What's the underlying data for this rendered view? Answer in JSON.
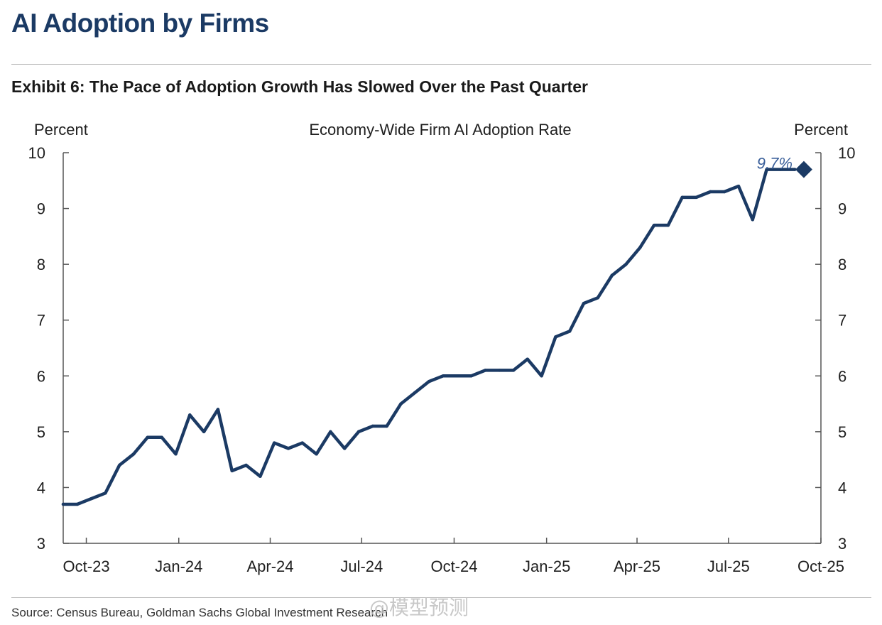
{
  "header": {
    "title": "AI Adoption by Firms",
    "exhibit_title": "Exhibit 6: The Pace of Adoption Growth Has Slowed Over the Past Quarter"
  },
  "footer": {
    "source": "Source: Census Bureau, Goldman Sachs Global Investment Research",
    "watermark": "@模型预测"
  },
  "colors": {
    "line": "#1b3a64",
    "title": "#1b3a64",
    "annotation": "#3a5f9a"
  },
  "chart_data": {
    "type": "line",
    "title": "Economy-Wide Firm AI Adoption Rate",
    "ylabel_left": "Percent",
    "ylabel_right": "Percent",
    "ylim": [
      3,
      10
    ],
    "yticks": [
      3,
      4,
      5,
      6,
      7,
      8,
      9,
      10
    ],
    "xlim": [
      "2023-09-08",
      "2025-10-01"
    ],
    "xticks": [
      {
        "date": "2023-10-01",
        "label": "Oct-23"
      },
      {
        "date": "2024-01-01",
        "label": "Jan-24"
      },
      {
        "date": "2024-04-01",
        "label": "Apr-24"
      },
      {
        "date": "2024-07-01",
        "label": "Jul-24"
      },
      {
        "date": "2024-10-01",
        "label": "Oct-24"
      },
      {
        "date": "2025-01-01",
        "label": "Jan-25"
      },
      {
        "date": "2025-04-01",
        "label": "Apr-25"
      },
      {
        "date": "2025-07-01",
        "label": "Jul-25"
      },
      {
        "date": "2025-10-01",
        "label": "Oct-25"
      }
    ],
    "grid": false,
    "annotation": {
      "text": "9.7%",
      "date": "2025-09-14",
      "value": 9.7
    },
    "series": [
      {
        "x": [
          "2023-09-08",
          "2023-09-22",
          "2023-10-06",
          "2023-10-20",
          "2023-11-03",
          "2023-11-17",
          "2023-12-01",
          "2023-12-15",
          "2023-12-29",
          "2024-01-12",
          "2024-01-26",
          "2024-02-09",
          "2024-02-23",
          "2024-03-08",
          "2024-03-22",
          "2024-04-05",
          "2024-04-19",
          "2024-05-03",
          "2024-05-17",
          "2024-05-31",
          "2024-06-14",
          "2024-06-28",
          "2024-07-12",
          "2024-07-26",
          "2024-08-09",
          "2024-08-23",
          "2024-09-06",
          "2024-09-20",
          "2024-10-04",
          "2024-10-18",
          "2024-11-01",
          "2024-11-15",
          "2024-11-29",
          "2024-12-13",
          "2024-12-27",
          "2025-01-10",
          "2025-01-24",
          "2025-02-07",
          "2025-02-21",
          "2025-03-07",
          "2025-03-21",
          "2025-04-04",
          "2025-04-18",
          "2025-05-02",
          "2025-05-16",
          "2025-05-30",
          "2025-06-13",
          "2025-06-27",
          "2025-07-11",
          "2025-07-25",
          "2025-08-08",
          "2025-08-22",
          "2025-09-05"
        ],
        "values": [
          3.7,
          3.7,
          3.8,
          3.9,
          4.4,
          4.6,
          4.9,
          4.9,
          4.6,
          5.3,
          5.0,
          5.4,
          4.3,
          4.4,
          4.2,
          4.8,
          4.7,
          4.8,
          4.6,
          5.0,
          4.7,
          5.0,
          5.1,
          5.1,
          5.5,
          5.7,
          5.9,
          6.0,
          6.0,
          6.0,
          6.1,
          6.1,
          6.1,
          6.3,
          6.0,
          6.7,
          6.8,
          7.3,
          7.4,
          7.8,
          8.0,
          8.3,
          8.7,
          8.7,
          9.2,
          9.2,
          9.3,
          9.3,
          9.4,
          8.8,
          9.7,
          9.7,
          9.7
        ]
      }
    ]
  }
}
